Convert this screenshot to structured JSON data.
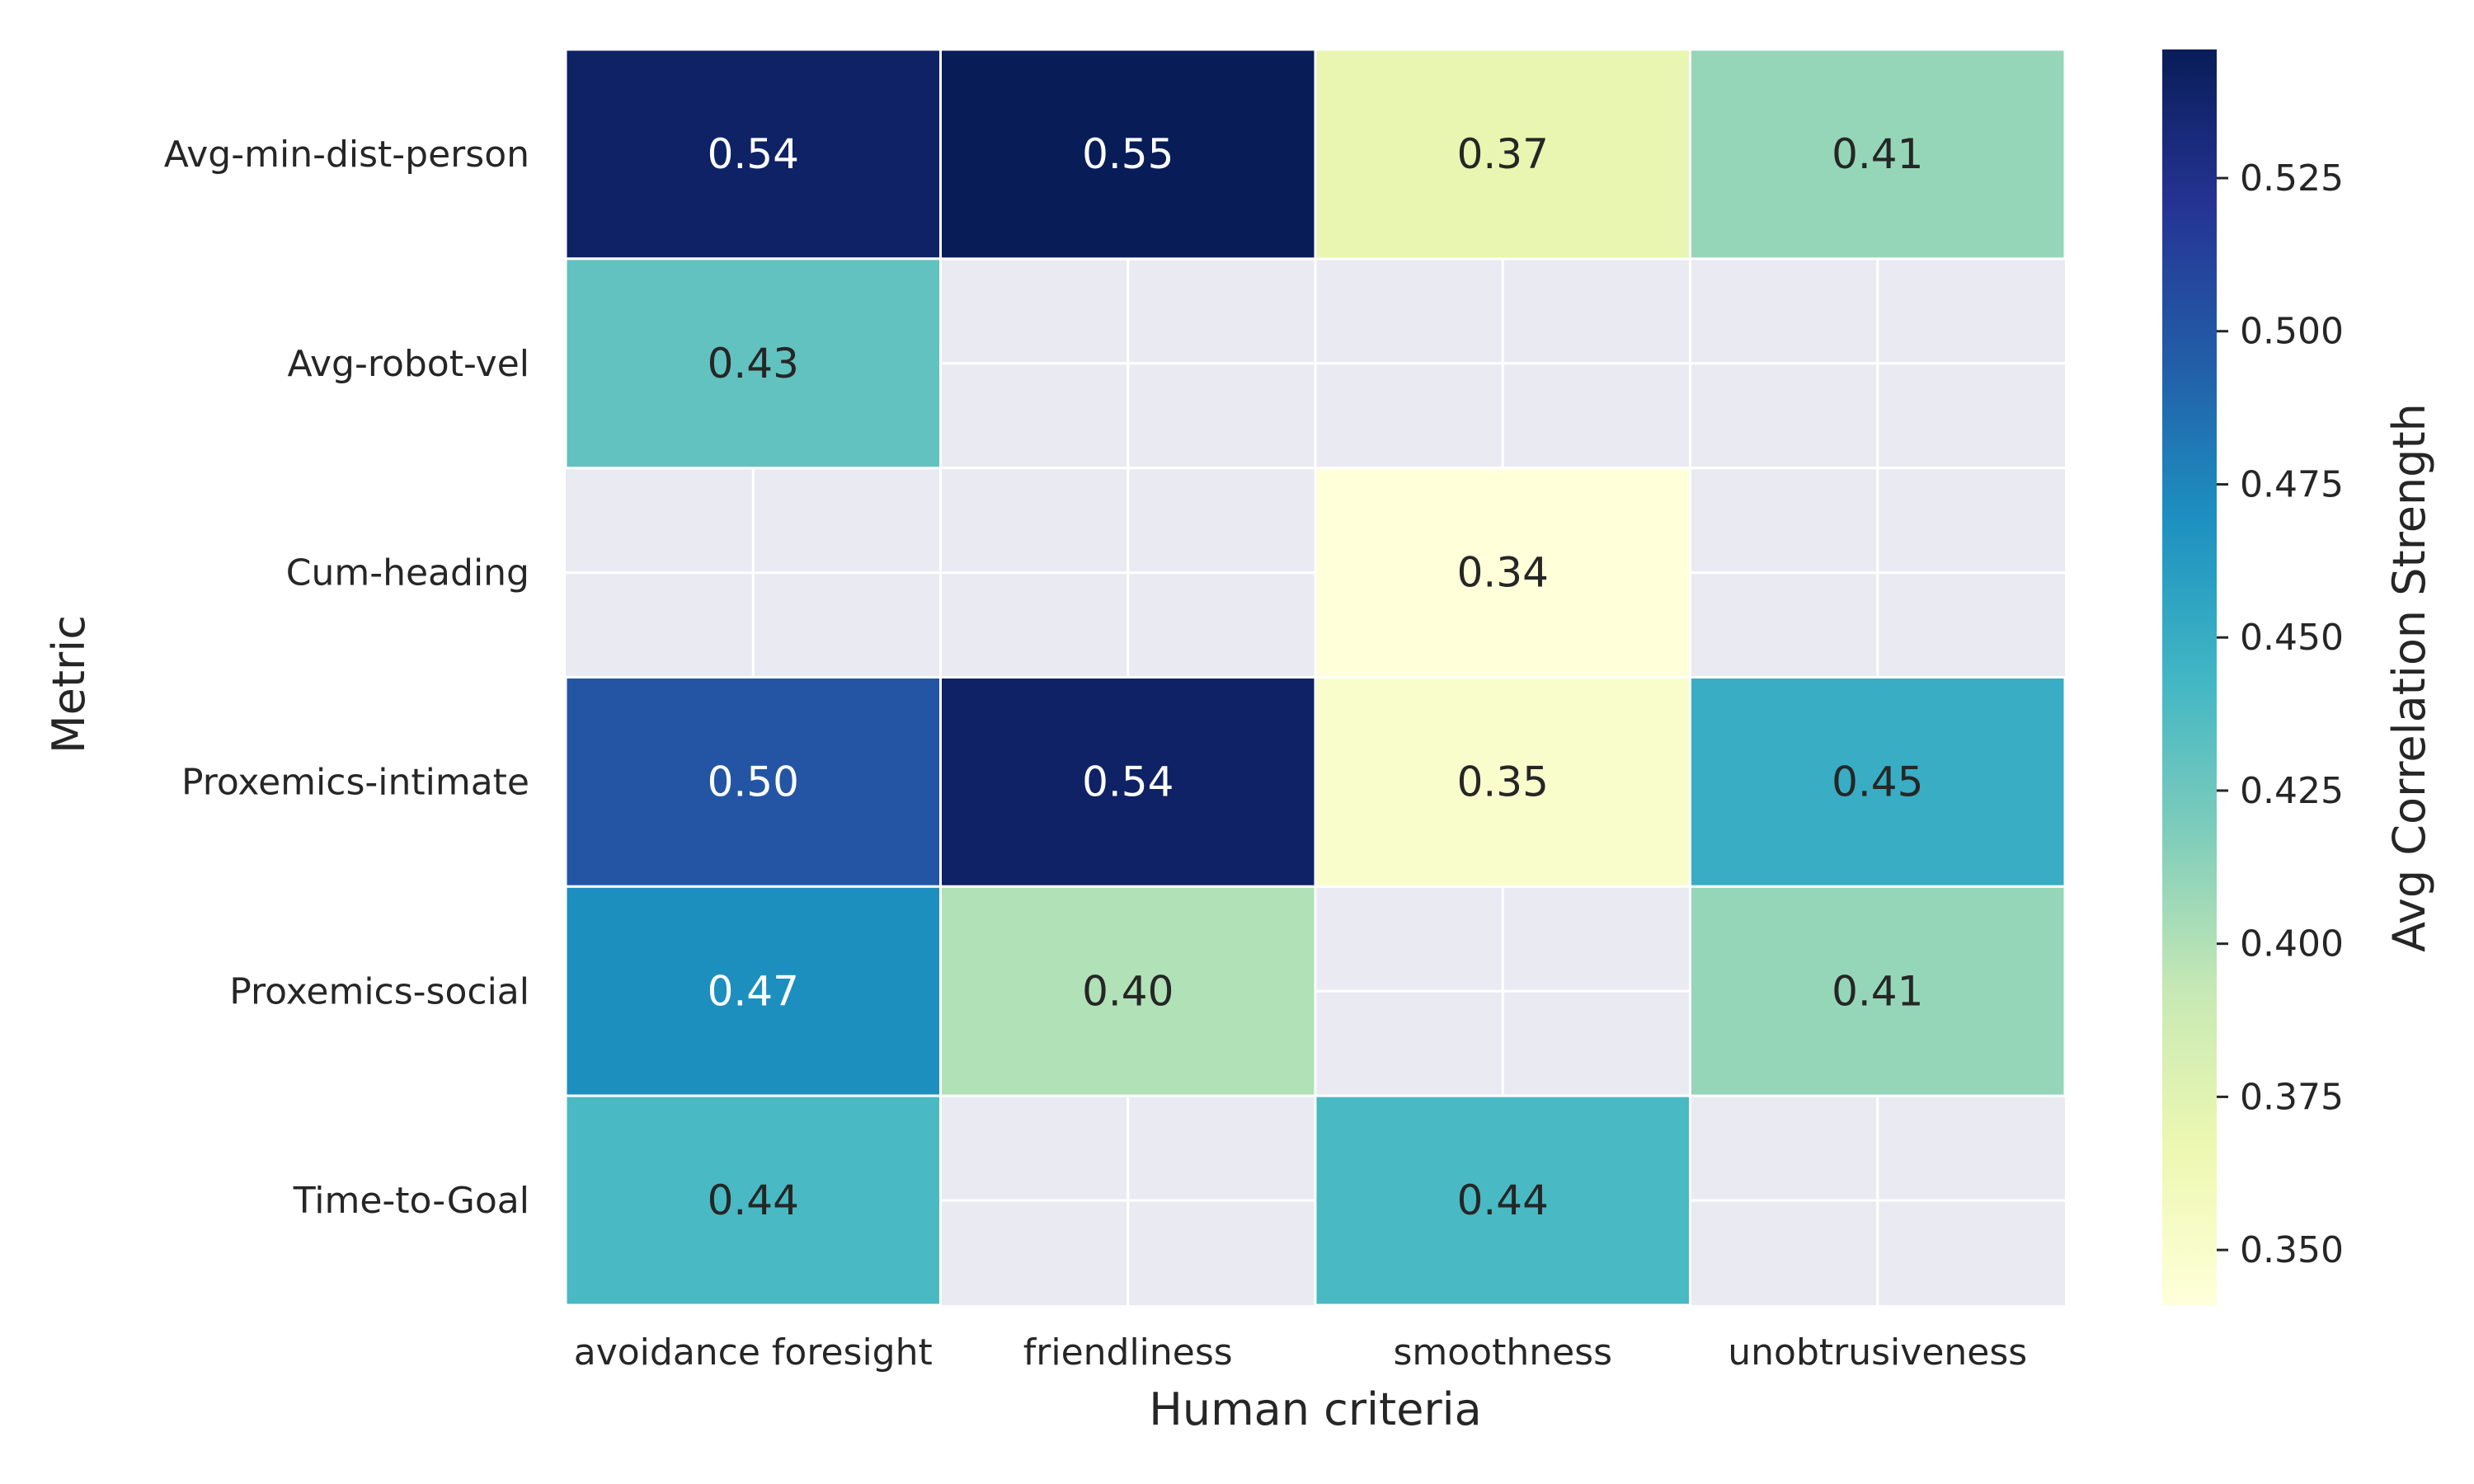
{
  "chart_data": {
    "type": "heatmap",
    "title": "",
    "xlabel": "Human criteria",
    "ylabel": "Metric",
    "x": [
      "avoidance foresight",
      "friendliness",
      "smoothness",
      "unobtrusiveness"
    ],
    "y": [
      "Avg-min-dist-person",
      "Avg-robot-vel",
      "Cum-heading",
      "Proxemics-intimate",
      "Proxemics-social",
      "Time-to-Goal"
    ],
    "values": [
      [
        0.54,
        0.55,
        0.37,
        0.41
      ],
      [
        0.43,
        null,
        null,
        null
      ],
      [
        null,
        null,
        0.34,
        null
      ],
      [
        0.5,
        0.54,
        0.35,
        0.45
      ],
      [
        0.47,
        0.4,
        null,
        0.41
      ],
      [
        0.44,
        null,
        0.44,
        null
      ]
    ],
    "labels": [
      [
        "0.54",
        "0.55",
        "0.37",
        "0.41"
      ],
      [
        "0.43",
        "",
        "",
        ""
      ],
      [
        "",
        "",
        "0.34",
        ""
      ],
      [
        "0.50",
        "0.54",
        "0.35",
        "0.45"
      ],
      [
        "0.47",
        "0.40",
        "",
        "0.41"
      ],
      [
        "0.44",
        "",
        "0.44",
        ""
      ]
    ],
    "colorscale": "YlGnBu",
    "colorbar": {
      "label": "Avg Correlation Strength",
      "range": [
        0.341,
        0.546
      ],
      "ticks": [
        0.35,
        0.375,
        0.4,
        0.425,
        0.45,
        0.475,
        0.5,
        0.525
      ],
      "tick_labels": [
        "0.350",
        "0.375",
        "0.400",
        "0.425",
        "0.450",
        "0.475",
        "0.500",
        "0.525"
      ]
    },
    "missing_color": "#eaeaf2",
    "grid": true
  }
}
